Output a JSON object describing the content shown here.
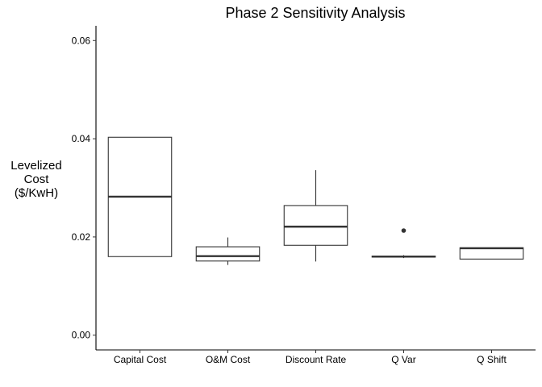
{
  "chart_data": {
    "type": "boxplot",
    "title": "Phase 2 Sensitivity Analysis",
    "xlabel": "",
    "ylabel": "Levelized\nCost\n($/KwH)",
    "ylim": [
      -0.003,
      0.063
    ],
    "yticks": [
      0.0,
      0.02,
      0.04,
      0.06
    ],
    "ytick_labels": [
      "0.00",
      "0.02",
      "0.04",
      "0.06"
    ],
    "grid": false,
    "categories": [
      "Capital Cost",
      "O&M Cost",
      "Discount Rate",
      "Q Var",
      "Q Shift"
    ],
    "boxes": [
      {
        "category": "Capital Cost",
        "whisker_low": 0.016,
        "q1": 0.016,
        "median": 0.0282,
        "q3": 0.0403,
        "whisker_high": 0.0403,
        "outliers": []
      },
      {
        "category": "O&M Cost",
        "whisker_low": 0.0143,
        "q1": 0.0151,
        "median": 0.0161,
        "q3": 0.018,
        "whisker_high": 0.0199,
        "outliers": []
      },
      {
        "category": "Discount Rate",
        "whisker_low": 0.015,
        "q1": 0.0183,
        "median": 0.0221,
        "q3": 0.0264,
        "whisker_high": 0.0336,
        "outliers": []
      },
      {
        "category": "Q Var",
        "whisker_low": 0.0157,
        "q1": 0.0159,
        "median": 0.016,
        "q3": 0.0161,
        "whisker_high": 0.0163,
        "outliers": [
          0.0213
        ]
      },
      {
        "category": "Q Shift",
        "whisker_low": 0.0155,
        "q1": 0.0155,
        "median": 0.0177,
        "q3": 0.0178,
        "whisker_high": 0.0178,
        "outliers": []
      }
    ]
  }
}
